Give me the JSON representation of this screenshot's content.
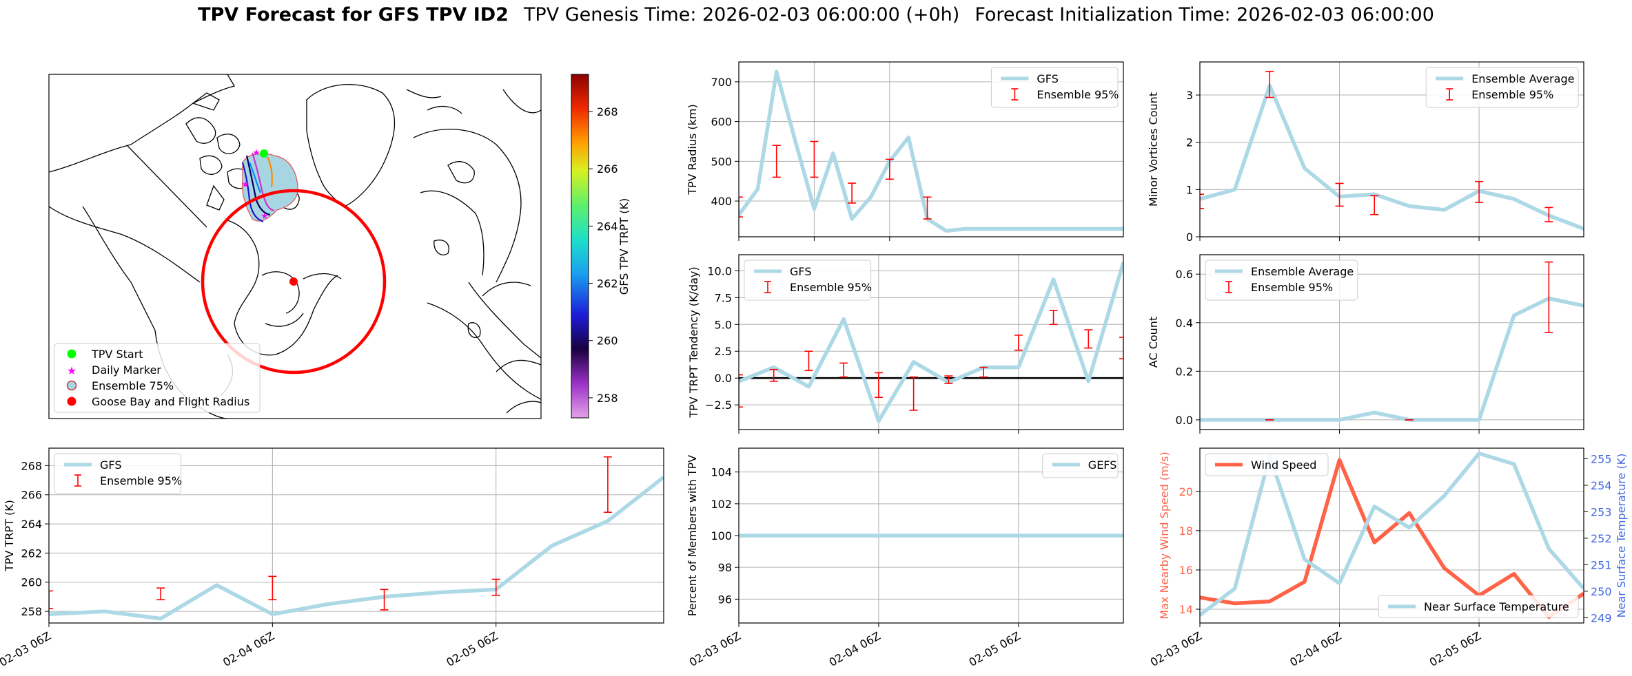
{
  "header": {
    "title_bold": "TPV Forecast for GFS TPV ID2",
    "title_genesis": "TPV Genesis Time: 2026-02-03 06:00:00 (+0h)",
    "title_init": "Forecast Initialization Time: 2026-02-03 06:00:00"
  },
  "colors": {
    "gfs_line": "#add8e6",
    "error_bar": "#ff0000",
    "wind_line": "#ff6347",
    "temp_axis": "#4169e1",
    "goose_bay": "#ff0000",
    "tpv_start": "#00ff00",
    "daily_marker": "#ff00ff"
  },
  "map": {
    "colorbar_label": "GFS TPV TRPT (K)",
    "colorbar_ticks": [
      258,
      260,
      262,
      264,
      266,
      268
    ],
    "colorbar_range": [
      257.3,
      269.3
    ],
    "legend": [
      "TPV Start",
      "Daily Marker",
      "Ensemble 75%",
      "Goose Bay and Flight Radius"
    ]
  },
  "chart_data": [
    {
      "id": "radius",
      "type": "line",
      "ylabel": "TPV Radius (km)",
      "ylim": [
        310,
        750
      ],
      "yticks": [
        400,
        500,
        600,
        700
      ],
      "xlim": [
        0,
        10.2
      ],
      "series": [
        {
          "name": "GFS",
          "x": [
            0,
            0.5,
            1,
            1.5,
            2,
            2.5,
            3,
            3.5,
            4,
            4.5,
            5,
            5.5,
            6,
            6.5,
            7,
            7.5,
            8,
            8.5,
            9,
            9.5,
            10,
            10.2
          ],
          "y": [
            365,
            430,
            725,
            550,
            380,
            520,
            355,
            410,
            500,
            560,
            355,
            325,
            330,
            330,
            330,
            330,
            330,
            330,
            330,
            330,
            330,
            330
          ]
        }
      ],
      "error_bars": [
        {
          "x": 0,
          "low": 360,
          "high": 410
        },
        {
          "x": 1,
          "low": 460,
          "high": 540
        },
        {
          "x": 2,
          "low": 460,
          "high": 550
        },
        {
          "x": 3,
          "low": 395,
          "high": 445
        },
        {
          "x": 4,
          "low": 455,
          "high": 505
        },
        {
          "x": 5,
          "low": 355,
          "high": 410
        }
      ],
      "legend": [
        "GFS",
        "Ensemble 95%"
      ],
      "legend_position": "upper right",
      "grid": true
    },
    {
      "id": "minor",
      "type": "line",
      "ylabel": "Minor Vortices Count",
      "ylim": [
        0,
        3.7
      ],
      "yticks": [
        0,
        1,
        2,
        3
      ],
      "xlim": [
        0,
        5.5
      ],
      "series": [
        {
          "name": "Ensemble Average",
          "x": [
            0,
            0.5,
            1,
            1.5,
            2,
            2.5,
            3,
            3.5,
            4,
            4.5,
            5,
            5.5
          ],
          "y": [
            0.8,
            1.0,
            3.2,
            1.45,
            0.85,
            0.9,
            0.65,
            0.57,
            0.97,
            0.8,
            0.45,
            0.17
          ]
        }
      ],
      "error_bars": [
        {
          "x": 0,
          "low": 0.6,
          "high": 0.9
        },
        {
          "x": 1,
          "low": 2.95,
          "high": 3.5
        },
        {
          "x": 2,
          "low": 0.65,
          "high": 1.13
        },
        {
          "x": 2.5,
          "low": 0.47,
          "high": 0.87
        },
        {
          "x": 4,
          "low": 0.73,
          "high": 1.17
        },
        {
          "x": 5,
          "low": 0.32,
          "high": 0.62
        }
      ],
      "legend": [
        "Ensemble Average",
        "Ensemble 95%"
      ],
      "legend_position": "upper right",
      "grid": true
    },
    {
      "id": "tendency",
      "type": "line",
      "ylabel": "TPV TRPT Tendency (K/day)",
      "ylim": [
        -4.8,
        11.5
      ],
      "yticks": [
        -2.5,
        0.0,
        2.5,
        5.0,
        7.5,
        10.0
      ],
      "xlim": [
        0,
        5.5
      ],
      "series": [
        {
          "name": "GFS",
          "x": [
            0,
            0.5,
            1,
            1.5,
            2,
            2.5,
            3,
            3.5,
            4,
            4.5,
            5,
            5.5
          ],
          "y": [
            -0.3,
            1.0,
            -0.8,
            5.5,
            -4.0,
            1.5,
            -0.4,
            1.0,
            1.0,
            9.2,
            -0.3,
            10.8
          ]
        }
      ],
      "error_bars": [
        {
          "x": 0,
          "low": -2.7,
          "high": 0.3
        },
        {
          "x": 0.5,
          "low": -0.3,
          "high": 0.8
        },
        {
          "x": 1,
          "low": 0.7,
          "high": 2.5
        },
        {
          "x": 1.5,
          "low": 0.1,
          "high": 1.4
        },
        {
          "x": 2,
          "low": -1.8,
          "high": 0.5
        },
        {
          "x": 2.5,
          "low": -3.0,
          "high": 0.1
        },
        {
          "x": 3,
          "low": -0.5,
          "high": 0.2
        },
        {
          "x": 3.5,
          "low": 0.1,
          "high": 1.0
        },
        {
          "x": 4,
          "low": 2.6,
          "high": 4.0
        },
        {
          "x": 4.5,
          "low": 5.0,
          "high": 6.3
        },
        {
          "x": 5,
          "low": 2.8,
          "high": 4.5
        },
        {
          "x": 5.5,
          "low": 1.8,
          "high": 3.8
        }
      ],
      "zero_line": true,
      "legend": [
        "GFS",
        "Ensemble 95%"
      ],
      "legend_position": "upper left",
      "grid": true
    },
    {
      "id": "ac",
      "type": "line",
      "ylabel": "AC Count",
      "ylim": [
        -0.04,
        0.68
      ],
      "yticks": [
        0.0,
        0.2,
        0.4,
        0.6
      ],
      "xlim": [
        0,
        5.5
      ],
      "series": [
        {
          "name": "Ensemble Average",
          "x": [
            0,
            0.5,
            1,
            1.5,
            2,
            2.5,
            3,
            3.5,
            4,
            4.5,
            5,
            5.5
          ],
          "y": [
            0,
            0,
            0,
            0,
            0,
            0.03,
            0,
            0,
            0,
            0.43,
            0.5,
            0.47
          ]
        }
      ],
      "error_bars": [
        {
          "x": 1,
          "low": 0,
          "high": 0
        },
        {
          "x": 3,
          "low": 0,
          "high": 0
        },
        {
          "x": 5,
          "low": 0.36,
          "high": 0.65
        }
      ],
      "legend": [
        "Ensemble Average",
        "Ensemble 95%"
      ],
      "legend_position": "upper left",
      "grid": true
    },
    {
      "id": "trpt",
      "type": "line",
      "ylabel": "TPV TRPT (K)",
      "ylim": [
        257.2,
        269.2
      ],
      "yticks": [
        258,
        260,
        262,
        264,
        266,
        268
      ],
      "xlim": [
        0,
        5.5
      ],
      "series": [
        {
          "name": "GFS",
          "x": [
            0,
            0.5,
            1,
            1.5,
            2,
            2.5,
            3,
            3.5,
            4,
            4.5,
            5,
            5.5
          ],
          "y": [
            257.8,
            258.0,
            257.5,
            259.8,
            257.8,
            258.5,
            259.0,
            259.3,
            259.5,
            262.5,
            264.2,
            267.2
          ]
        }
      ],
      "error_bars": [
        {
          "x": 0,
          "low": 258.2,
          "high": 259.4
        },
        {
          "x": 1,
          "low": 258.8,
          "high": 259.6
        },
        {
          "x": 2,
          "low": 258.8,
          "high": 260.4
        },
        {
          "x": 3,
          "low": 258.1,
          "high": 259.5
        },
        {
          "x": 4,
          "low": 259.1,
          "high": 260.2
        },
        {
          "x": 5,
          "low": 264.8,
          "high": 268.6
        }
      ],
      "legend": [
        "GFS",
        "Ensemble 95%"
      ],
      "legend_position": "upper left",
      "grid": true
    },
    {
      "id": "percent",
      "type": "line",
      "ylabel": "Percent of Members with TPV",
      "ylim": [
        94.5,
        105.5
      ],
      "yticks": [
        96,
        98,
        100,
        102,
        104
      ],
      "xlim": [
        0,
        5.5
      ],
      "series": [
        {
          "name": "GEFS",
          "x": [
            0,
            5.5
          ],
          "y": [
            100,
            100
          ]
        }
      ],
      "legend": [
        "GEFS"
      ],
      "legend_position": "upper right",
      "grid": true
    },
    {
      "id": "wind",
      "type": "line",
      "ylabel_left": "Max Nearby Wind Speed (m/s)",
      "ylabel_right": "Near Surface Temperature (K)",
      "ylim_left": [
        13.3,
        22.2
      ],
      "yticks_left": [
        14,
        16,
        18,
        20
      ],
      "ylim_right": [
        248.8,
        255.4
      ],
      "yticks_right": [
        249,
        250,
        251,
        252,
        253,
        254,
        255
      ],
      "xlim": [
        0,
        5.5
      ],
      "series": [
        {
          "name": "Wind Speed",
          "axis": "left",
          "x": [
            0,
            0.5,
            1,
            1.5,
            2,
            2.5,
            3,
            3.5,
            4,
            4.5,
            5,
            5.5
          ],
          "y": [
            14.6,
            14.3,
            14.4,
            15.4,
            21.6,
            17.4,
            18.9,
            16.1,
            14.7,
            15.8,
            13.6,
            14.8
          ]
        },
        {
          "name": "Near Surface Temperature",
          "axis": "right",
          "x": [
            0,
            0.5,
            1,
            1.5,
            2,
            2.5,
            3,
            3.5,
            4,
            4.5,
            5,
            5.5
          ],
          "y": [
            249.1,
            250.1,
            255.1,
            251.2,
            250.3,
            253.2,
            252.4,
            253.6,
            255.2,
            254.8,
            251.6,
            250.1
          ]
        }
      ],
      "legend": [
        "Wind Speed",
        "Near Surface Temperature"
      ],
      "grid": true
    }
  ],
  "xaxis": {
    "ticks": [
      "02-03 06Z",
      "02-04 06Z",
      "02-05 06Z"
    ],
    "tick_x": [
      0,
      2,
      4
    ]
  }
}
